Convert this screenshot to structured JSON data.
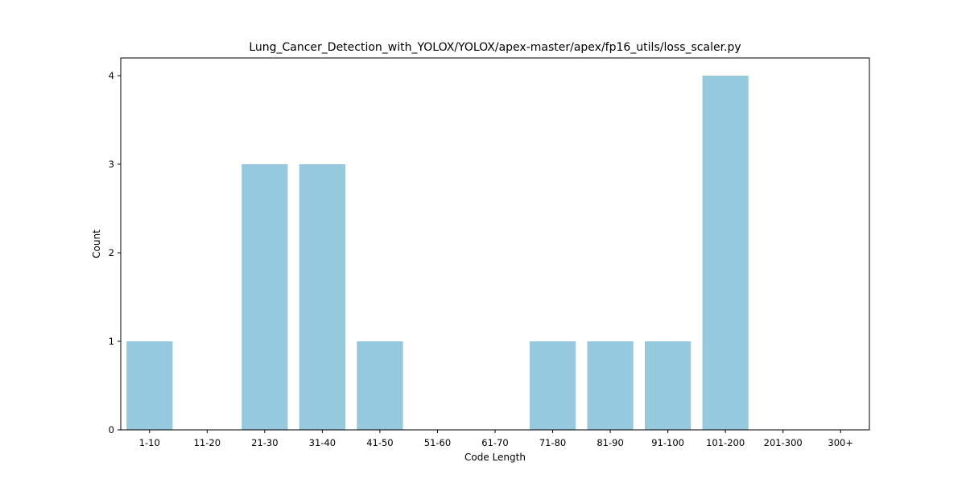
{
  "chart_data": {
    "type": "bar",
    "title": "Lung_Cancer_Detection_with_YOLOX/YOLOX/apex-master/apex/fp16_utils/loss_scaler.py",
    "xlabel": "Code Length",
    "ylabel": "Count",
    "categories": [
      "1-10",
      "11-20",
      "21-30",
      "31-40",
      "41-50",
      "51-60",
      "61-70",
      "71-80",
      "81-90",
      "91-100",
      "101-200",
      "201-300",
      "300+"
    ],
    "values": [
      1,
      0,
      3,
      3,
      1,
      0,
      0,
      1,
      1,
      1,
      4,
      0,
      0
    ],
    "ylim": [
      0,
      4.2
    ],
    "yticks": [
      0,
      1,
      2,
      3,
      4
    ],
    "bar_color": "#96c9de",
    "grid": false,
    "legend": "none"
  }
}
